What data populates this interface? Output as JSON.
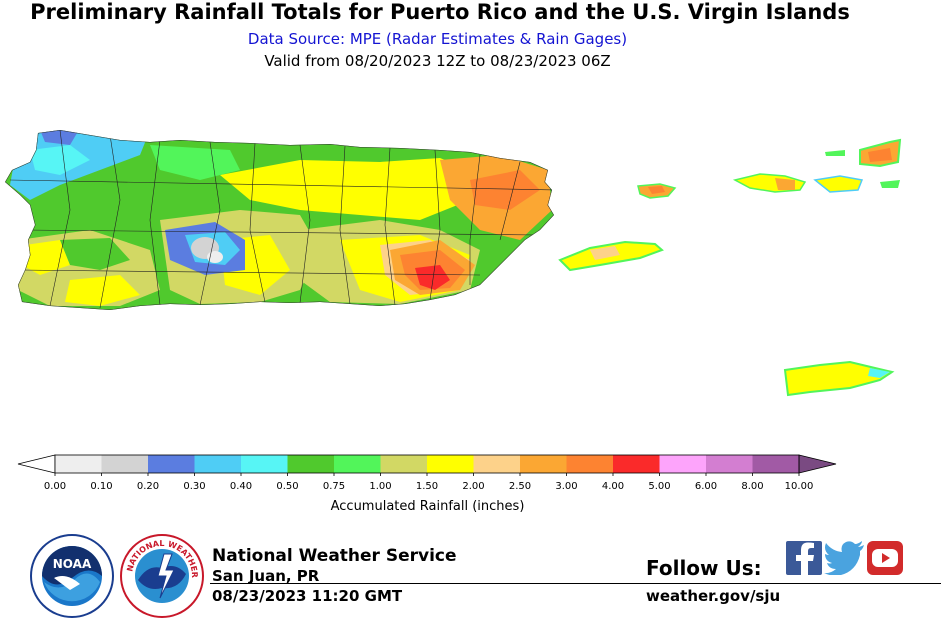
{
  "header": {
    "title": "Preliminary Rainfall Totals for Puerto Rico and the U.S. Virgin Islands",
    "subtitle": "Data Source: MPE (Radar Estimates & Rain Gages)",
    "valid": "Valid from 08/20/2023 12Z to 08/23/2023 06Z"
  },
  "legend": {
    "label": "Accumulated Rainfall (inches)",
    "colors": [
      "#eeeeee",
      "#d3d3d3",
      "#5b7de0",
      "#4fcdf5",
      "#57f5f5",
      "#50c92d",
      "#52f55a",
      "#d2d864",
      "#ffff00",
      "#fdd28a",
      "#fba733",
      "#fd8331",
      "#fa2a2a",
      "#fda4fb",
      "#d37ed1",
      "#a15aa5"
    ],
    "low_color": "#ffffff",
    "high_color": "#7a4a82",
    "ticks": [
      "0.00",
      "0.10",
      "0.20",
      "0.30",
      "0.40",
      "0.50",
      "0.75",
      "1.00",
      "1.50",
      "2.00",
      "2.50",
      "3.00",
      "4.00",
      "5.00",
      "6.00",
      "8.00",
      "10.00"
    ]
  },
  "footer": {
    "org": "National Weather Service",
    "office": "San Juan, PR",
    "timestamp": "08/23/2023 11:20 GMT",
    "follow": "Follow Us:",
    "site": "weather.gov/sju",
    "noaa_logo_text": "NOAA",
    "nws_logo_text": "NATIONAL WEATHER SERVICE"
  },
  "social": {
    "facebook_color": "#3b5998",
    "twitter_color": "#4aa3df",
    "youtube_color": "#d22b2b"
  }
}
